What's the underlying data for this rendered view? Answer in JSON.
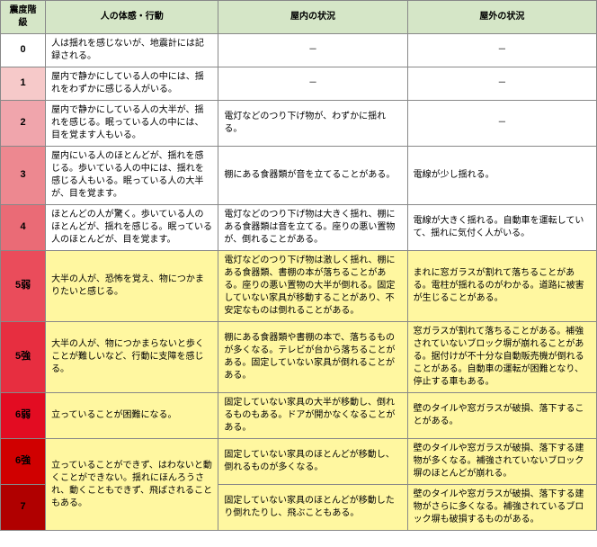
{
  "header_bg": "#d5e6c7",
  "columns": [
    "震度階級",
    "人の体感・行動",
    "屋内の状況",
    "屋外の状況"
  ],
  "col_widths": [
    "50px",
    "192px",
    "210px",
    "210px"
  ],
  "rows": [
    {
      "level": "0",
      "level_bg": "#ffffff",
      "body": "人は揺れを感じないが、地震計には記録される。",
      "indoor": "－",
      "outdoor": "－",
      "indoor_dash": true,
      "outdoor_dash": true
    },
    {
      "level": "1",
      "level_bg": "#f6c9c9",
      "body": "屋内で静かにしている人の中には、揺れをわずかに感じる人がいる。",
      "indoor": "－",
      "outdoor": "－",
      "indoor_dash": true,
      "outdoor_dash": true
    },
    {
      "level": "2",
      "level_bg": "#f0a5ac",
      "body": "屋内で静かにしている人の大半が、揺れを感じる。眠っている人の中には、目を覚ます人もいる。",
      "indoor": "電灯などのつり下げ物が、わずかに揺れる。",
      "outdoor": "－",
      "outdoor_dash": true
    },
    {
      "level": "3",
      "level_bg": "#ed8890",
      "body": "屋内にいる人のほとんどが、揺れを感じる。歩いている人の中には、揺れを感じる人もいる。眠っている人の大半が、目を覚ます。",
      "indoor": "棚にある食器類が音を立てることがある。",
      "outdoor": "電線が少し揺れる。"
    },
    {
      "level": "4",
      "level_bg": "#ea6b76",
      "body": "ほとんどの人が驚く。歩いている人のほとんどが、揺れを感じる。眠っている人のほとんどが、目を覚ます。",
      "indoor": "電灯などのつり下げ物は大きく揺れ、棚にある食器類は音を立てる。座りの悪い置物が、倒れることがある。",
      "outdoor": "電線が大きく揺れる。自動車を運転していて、揺れに気付く人がいる。"
    },
    {
      "level": "5弱",
      "level_bg": "#ea4c5b",
      "row_bg": "#fff7a0",
      "body": "大半の人が、恐怖を覚え、物につかまりたいと感じる。",
      "indoor": "電灯などのつり下げ物は激しく揺れ、棚にある食器類、書棚の本が落ちることがある。座りの悪い置物の大半が倒れる。固定していない家具が移動することがあり、不安定なものは倒れることがある。",
      "outdoor": "まれに窓ガラスが割れて落ちることがある。電柱が揺れるのがわかる。道路に被害が生じることがある。"
    },
    {
      "level": "5強",
      "level_bg": "#e72e40",
      "row_bg": "#fff7a0",
      "body": "大半の人が、物につかまらないと歩くことが難しいなど、行動に支障を感じる。",
      "indoor": "棚にある食器類や書棚の本で、落ちるものが多くなる。テレビが台から落ちることがある。固定していない家具が倒れることがある。",
      "outdoor": "窓ガラスが割れて落ちることがある。補強されていないブロック塀が崩れることがある。据付けが不十分な自動販売機が倒れることがある。自動車の運転が困難となり、停止する車もある。"
    },
    {
      "level": "6弱",
      "level_bg": "#e30c22",
      "row_bg": "#fff7a0",
      "body": "立っていることが困難になる。",
      "indoor": "固定していない家具の大半が移動し、倒れるものもある。ドアが開かなくなることがある。",
      "outdoor": "壁のタイルや窓ガラスが破損、落下することがある。"
    },
    {
      "level": "6強",
      "level_bg": "#d00000",
      "row_bg": "#fff7a0",
      "body": "立っていることができず、はわないと動くことができない。揺れにほんろうされ、動くこともできず、飛ばされることもある。",
      "body_rowspan": 2,
      "indoor": "固定していない家具のほとんどが移動し、倒れるものが多くなる。",
      "outdoor": "壁のタイルや窓ガラスが破損、落下する建物が多くなる。補強されていないブロック塀のほとんどが崩れる。"
    },
    {
      "level": "7",
      "level_bg": "#b00000",
      "row_bg": "#fff7a0",
      "body_skip": true,
      "indoor": "固定していない家具のほとんどが移動したり倒れたりし、飛ぶこともある。",
      "outdoor": "壁のタイルや窓ガラスが破損、落下する建物がさらに多くなる。補強されているブロック塀も破損するものがある。"
    }
  ]
}
